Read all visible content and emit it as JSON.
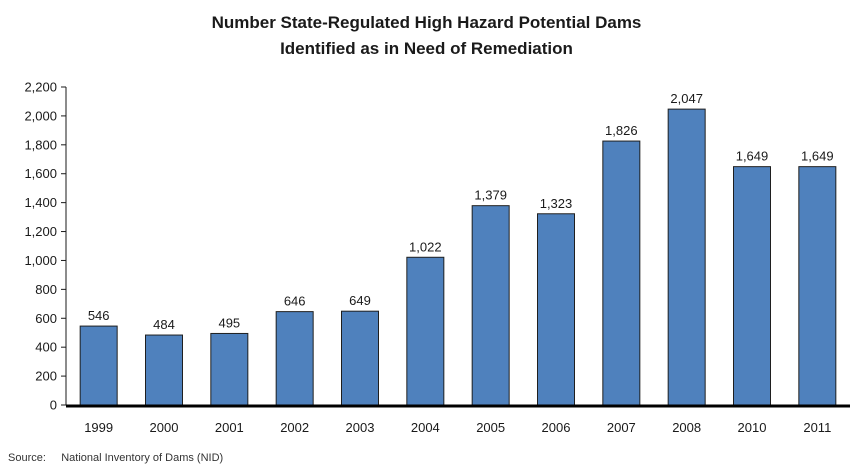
{
  "chart_data": {
    "type": "bar",
    "title_line1": "Number State-Regulated High Hazard Potential Dams",
    "title_line2": "Identified as in Need of Remediation",
    "categories": [
      "1999",
      "2000",
      "2001",
      "2002",
      "2003",
      "2004",
      "2005",
      "2006",
      "2007",
      "2008",
      "2010",
      "2011"
    ],
    "values": [
      546,
      484,
      495,
      646,
      649,
      1022,
      1379,
      1323,
      1826,
      2047,
      1649,
      1649
    ],
    "data_labels": [
      "546",
      "484",
      "495",
      "646",
      "649",
      "1,022",
      "1,379",
      "1,323",
      "1,826",
      "2,047",
      "1,649",
      "1,649"
    ],
    "ylim": [
      0,
      2200
    ],
    "y_ticks": [
      0,
      200,
      400,
      600,
      800,
      1000,
      1200,
      1400,
      1600,
      1800,
      2000,
      2200
    ],
    "y_tick_labels": [
      "0",
      "200",
      "400",
      "600",
      "800",
      "1,000",
      "1,200",
      "1,400",
      "1,600",
      "1,800",
      "2,000",
      "2,200"
    ],
    "grid": false,
    "bar_color": "#4f81bd",
    "bar_edge_color": "#1f1f1f"
  },
  "source": {
    "label": "Source:",
    "text": "National Inventory of Dams (NID)"
  }
}
